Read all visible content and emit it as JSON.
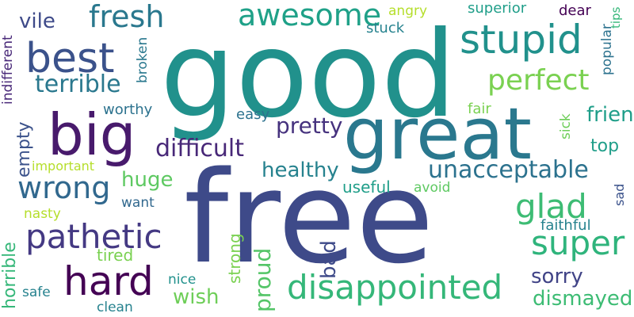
{
  "words": [
    {
      "text": "good",
      "color": "#21918c"
    },
    {
      "text": "free",
      "color": "#3e4a89"
    },
    {
      "text": "great",
      "color": "#2a788e"
    },
    {
      "text": "big",
      "color": "#481a6c"
    },
    {
      "text": "stupid",
      "color": "#21918c"
    },
    {
      "text": "best",
      "color": "#3b528b"
    },
    {
      "text": "hard",
      "color": "#440154"
    },
    {
      "text": "disappointed",
      "color": "#35b779"
    },
    {
      "text": "super",
      "color": "#2fb47c"
    },
    {
      "text": "pathetic",
      "color": "#443983"
    },
    {
      "text": "awesome",
      "color": "#1fa188"
    },
    {
      "text": "perfect",
      "color": "#7ad151"
    },
    {
      "text": "wrong",
      "color": "#31688e"
    },
    {
      "text": "unacceptable",
      "color": "#2c728e"
    },
    {
      "text": "glad",
      "color": "#3dbc74"
    },
    {
      "text": "fresh",
      "color": "#2a788e"
    },
    {
      "text": "difficult",
      "color": "#482878"
    },
    {
      "text": "terrible",
      "color": "#2a788e"
    },
    {
      "text": "pretty",
      "color": "#46327e"
    },
    {
      "text": "huge",
      "color": "#5ec962"
    },
    {
      "text": "healthy",
      "color": "#26828e"
    },
    {
      "text": "sorry",
      "color": "#414487"
    },
    {
      "text": "dismayed",
      "color": "#3dbc74"
    },
    {
      "text": "friendly",
      "color": "#1f9e89"
    },
    {
      "text": "top",
      "color": "#1f9e89"
    },
    {
      "text": "vile",
      "color": "#3e4a89"
    },
    {
      "text": "wish",
      "color": "#6ece58"
    },
    {
      "text": "proud",
      "color": "#54c568"
    },
    {
      "text": "bad",
      "color": "#3e4a89"
    },
    {
      "text": "strong",
      "color": "#7ad151"
    },
    {
      "text": "horrible",
      "color": "#35b779"
    },
    {
      "text": "empty",
      "color": "#3b528b"
    },
    {
      "text": "useful",
      "color": "#1f9e89"
    },
    {
      "text": "superior",
      "color": "#1f9e89"
    },
    {
      "text": "tired",
      "color": "#7ad151"
    },
    {
      "text": "indifferent",
      "color": "#482878"
    },
    {
      "text": "broken",
      "color": "#2a788e"
    },
    {
      "text": "worthy",
      "color": "#2c728e"
    },
    {
      "text": "easy",
      "color": "#2c728e"
    },
    {
      "text": "fair",
      "color": "#7ad151"
    },
    {
      "text": "sick",
      "color": "#6ece58"
    },
    {
      "text": "popular",
      "color": "#2c728e"
    },
    {
      "text": "dear",
      "color": "#440154"
    },
    {
      "text": "angry",
      "color": "#b5de2b"
    },
    {
      "text": "stuck",
      "color": "#26828e"
    },
    {
      "text": "nasty",
      "color": "#b5de2b"
    },
    {
      "text": "important",
      "color": "#b5de2b"
    },
    {
      "text": "want",
      "color": "#31688e"
    },
    {
      "text": "avoid",
      "color": "#5ec962"
    },
    {
      "text": "sad",
      "color": "#3b528b"
    },
    {
      "text": "faithful",
      "color": "#26828e"
    },
    {
      "text": "nice",
      "color": "#21918c"
    },
    {
      "text": "safe",
      "color": "#26828e"
    },
    {
      "text": "clean",
      "color": "#26828e"
    },
    {
      "text": "tips",
      "color": "#35b779"
    }
  ]
}
